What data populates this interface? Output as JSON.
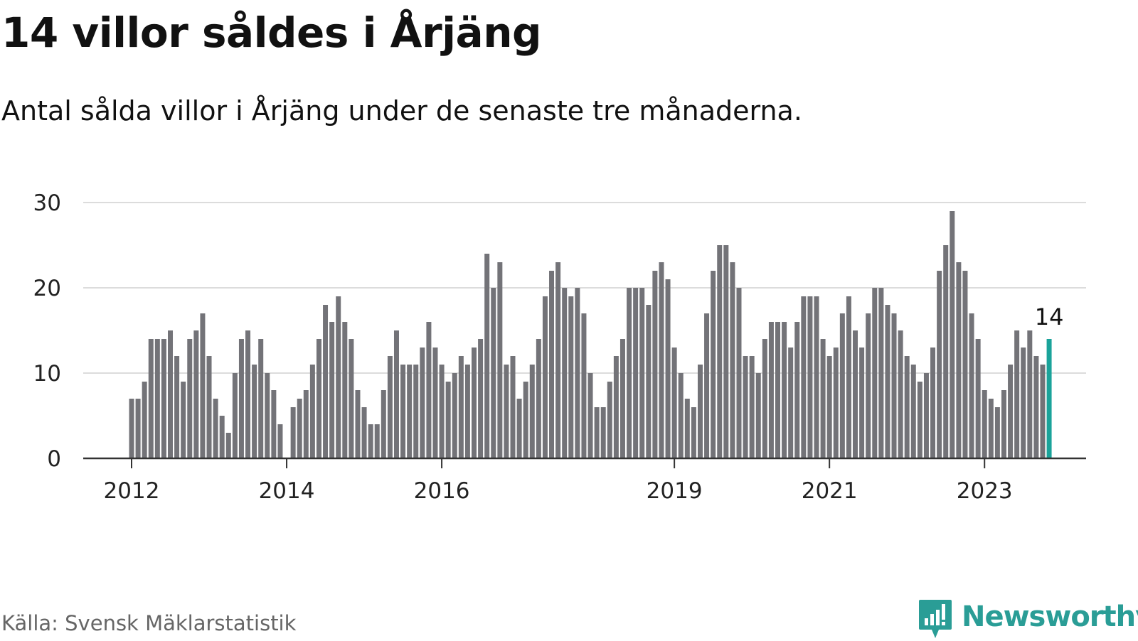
{
  "chart_data": {
    "type": "bar",
    "title": "14 villor såldes i Årjäng",
    "subtitle": "Antal sålda villor i Årjäng under de senaste tre månaderna.",
    "xlabel": "",
    "ylabel": "",
    "ylim": [
      0,
      30
    ],
    "yticks": [
      0,
      10,
      20,
      30
    ],
    "grid": true,
    "start_month": "2012-01",
    "xticks": [
      {
        "label": "2012",
        "index": 0
      },
      {
        "label": "2014",
        "index": 24
      },
      {
        "label": "2016",
        "index": 48
      },
      {
        "label": "2019",
        "index": 84
      },
      {
        "label": "2021",
        "index": 108
      },
      {
        "label": "2023",
        "index": 132
      }
    ],
    "values": [
      7,
      7,
      9,
      14,
      14,
      14,
      15,
      12,
      9,
      14,
      15,
      17,
      12,
      7,
      5,
      3,
      10,
      14,
      15,
      11,
      14,
      10,
      8,
      4,
      0,
      6,
      7,
      8,
      11,
      14,
      18,
      16,
      19,
      16,
      14,
      8,
      6,
      4,
      4,
      8,
      12,
      15,
      11,
      11,
      11,
      13,
      16,
      13,
      11,
      9,
      10,
      12,
      11,
      13,
      14,
      24,
      20,
      23,
      11,
      12,
      7,
      9,
      11,
      14,
      19,
      22,
      23,
      20,
      19,
      20,
      17,
      10,
      6,
      6,
      9,
      12,
      14,
      20,
      20,
      20,
      18,
      22,
      23,
      21,
      13,
      10,
      7,
      6,
      11,
      17,
      22,
      25,
      25,
      23,
      20,
      12,
      12,
      10,
      14,
      16,
      16,
      16,
      13,
      16,
      19,
      19,
      19,
      14,
      12,
      13,
      17,
      19,
      15,
      13,
      17,
      20,
      20,
      18,
      17,
      15,
      12,
      11,
      9,
      10,
      13,
      22,
      25,
      29,
      23,
      22,
      17,
      14,
      8,
      7,
      6,
      8,
      11,
      15,
      13,
      15,
      12,
      11,
      14
    ],
    "highlight_index": 142,
    "annotation": "14",
    "bar_color": "#737378",
    "highlight_color": "#1aa39a"
  },
  "source": "Källa: Svensk Mäklarstatistik",
  "logo": {
    "name": "Newsworthy",
    "color": "#2a9d96",
    "icon": "bar-chart-chat-bubble-icon"
  }
}
